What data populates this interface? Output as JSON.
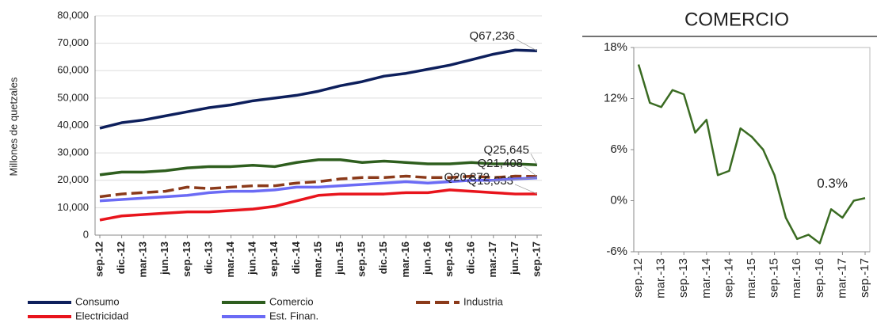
{
  "chart_data": [
    {
      "type": "line",
      "y_label": "Millones de quetzales",
      "categories": [
        "sep.-12",
        "dic.-12",
        "mar.-13",
        "jun.-13",
        "sep.-13",
        "dic.-13",
        "mar.-14",
        "jun.-14",
        "sep.-14",
        "dic.-14",
        "mar.-15",
        "jun.-15",
        "sep.-15",
        "dic.-15",
        "mar.-16",
        "jun.-16",
        "sep.-16",
        "dic.-16",
        "mar.-17",
        "jun.-17",
        "sep.-17"
      ],
      "ylim": [
        0,
        80000
      ],
      "yticks": [
        0,
        {
          "value": 10000,
          "label": "10,000"
        },
        {
          "value": 20000,
          "label": "20,000"
        },
        {
          "value": 30000,
          "label": "30,000"
        },
        {
          "value": 40000,
          "label": "40,000"
        },
        {
          "value": 50000,
          "label": "50,000"
        },
        {
          "value": 60000,
          "label": "60,000"
        },
        {
          "value": 70000,
          "label": "70,000"
        },
        {
          "value": 80000,
          "label": "80,000"
        }
      ],
      "grid": true,
      "legend": "bottom",
      "series": [
        {
          "name": "Consumo",
          "color": "#0d1f5c",
          "end_label": "Q67,236",
          "values": [
            39000,
            41000,
            42000,
            43500,
            45000,
            46500,
            47500,
            49000,
            50000,
            51000,
            52500,
            54500,
            56000,
            58000,
            59000,
            60500,
            62000,
            64000,
            66000,
            67500,
            67236
          ]
        },
        {
          "name": "Comercio",
          "color": "#2e5e1e",
          "end_label": "Q25,645",
          "values": [
            22000,
            23000,
            23000,
            23500,
            24500,
            25000,
            25000,
            25500,
            25000,
            26500,
            27500,
            27500,
            26500,
            27000,
            26500,
            26000,
            26000,
            26500,
            26000,
            26000,
            25645
          ]
        },
        {
          "name": "Industria",
          "color": "#8b3a1a",
          "dashed": true,
          "end_label": "Q21,408",
          "values": [
            14000,
            15000,
            15500,
            16000,
            17500,
            17000,
            17500,
            18000,
            18000,
            19000,
            19500,
            20500,
            21000,
            21000,
            21500,
            21000,
            21000,
            21500,
            21000,
            21500,
            21408
          ]
        },
        {
          "name": "Electricidad",
          "color": "#e8141c",
          "end_label": "Q15,033",
          "values": [
            5500,
            7000,
            7500,
            8000,
            8500,
            8500,
            9000,
            9500,
            10500,
            12500,
            14500,
            15000,
            15000,
            15000,
            15500,
            15500,
            16500,
            16000,
            15500,
            15000,
            15033
          ]
        },
        {
          "name": "Est. Finan.",
          "color": "#6b6bf5",
          "end_label": "Q20,872",
          "values": [
            12500,
            13000,
            13500,
            14000,
            14500,
            15500,
            16000,
            16000,
            16500,
            17500,
            17500,
            18000,
            18500,
            19000,
            19500,
            19000,
            19500,
            20000,
            20000,
            20500,
            20872
          ]
        }
      ]
    },
    {
      "type": "line",
      "title": "COMERCIO",
      "categories": [
        "sep.-12",
        null,
        "mar.-13",
        null,
        "sep.-13",
        null,
        "mar.-14",
        null,
        "sep.-14",
        null,
        "mar.-15",
        null,
        "sep.-15",
        null,
        "mar.-16",
        null,
        "sep.-16",
        null,
        "mar.-17",
        null,
        "sep.-17"
      ],
      "ylim": [
        -6,
        18
      ],
      "yticks": [
        {
          "value": -6,
          "label": "-6%"
        },
        {
          "value": 0,
          "label": "0%"
        },
        {
          "value": 6,
          "label": "6%"
        },
        {
          "value": 12,
          "label": "12%"
        },
        {
          "value": 18,
          "label": "18%"
        }
      ],
      "grid": false,
      "series": [
        {
          "color": "#3a6b22",
          "end_label": "0.3%",
          "values": [
            16,
            11.5,
            11,
            13,
            12.5,
            8,
            9.5,
            3,
            3.5,
            8.5,
            7.5,
            6,
            3,
            -2,
            -4.5,
            -4,
            -5,
            -1,
            -2,
            0,
            0.3
          ]
        }
      ]
    }
  ]
}
